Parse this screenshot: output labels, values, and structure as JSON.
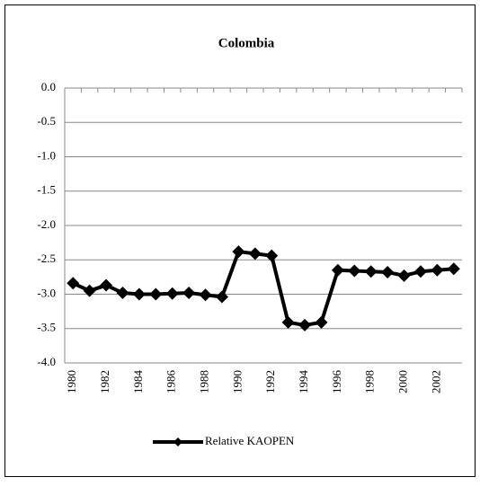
{
  "chart_data": {
    "type": "line",
    "title": "Colombia",
    "categories": [
      "1980",
      null,
      "1982",
      null,
      "1984",
      null,
      "1986",
      null,
      "1988",
      null,
      "1990",
      null,
      "1992",
      null,
      "1994",
      null,
      "1996",
      null,
      "1998",
      null,
      "2000",
      null,
      "2002",
      null
    ],
    "series": [
      {
        "name": "Relative KAOPEN",
        "color": "#000000",
        "values": [
          -2.84,
          -2.95,
          -2.87,
          -2.98,
          -3.0,
          -3.0,
          -2.99,
          -2.98,
          -3.01,
          -3.04,
          -2.38,
          -2.41,
          -2.44,
          -3.41,
          -3.45,
          -3.41,
          -2.65,
          -2.66,
          -2.67,
          -2.68,
          -2.73,
          -2.67,
          -2.65,
          -2.63
        ]
      }
    ],
    "ylim": [
      -4,
      0
    ],
    "yticks": [
      {
        "value": 0,
        "label": "0.0"
      },
      -0.5,
      {
        "value": -1,
        "label": "-1.0"
      },
      -1.5,
      {
        "value": -2,
        "label": "-2.0"
      },
      -2.5,
      {
        "value": -3,
        "label": "-3.0"
      },
      -3.5,
      {
        "value": -4,
        "label": "-4.0"
      }
    ],
    "grid": true,
    "legend": "bottom"
  }
}
